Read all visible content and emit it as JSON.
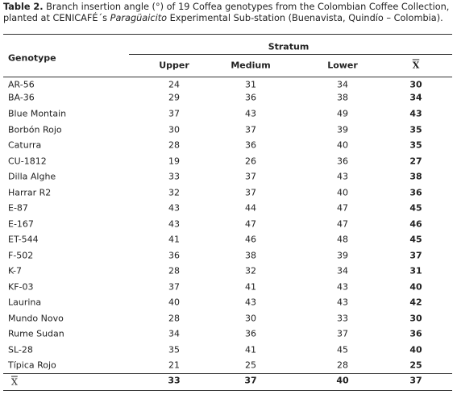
{
  "caption": {
    "label": "Table 2.",
    "text_before": " Branch insertion angle (°) of 19 Coffea genotypes from the Colombian Coffee Collection, planted at CENICAFÉ´s ",
    "italic": "Paragüaicito",
    "text_after": " Experimental Sub-station (Buenavista, Quindío – Colombia)."
  },
  "table": {
    "header": {
      "genotype": "Genotype",
      "group": "Stratum",
      "columns": [
        "Upper",
        "Medium",
        "Lower",
        "X"
      ]
    },
    "rows": [
      [
        "AR-56",
        24,
        31,
        34,
        30
      ],
      [
        "BA-36",
        29,
        36,
        38,
        34
      ],
      [
        "Blue Montain",
        37,
        43,
        49,
        43
      ],
      [
        "Borbón Rojo",
        30,
        37,
        39,
        35
      ],
      [
        "Caturra",
        28,
        36,
        40,
        35
      ],
      [
        "CU-1812",
        19,
        26,
        36,
        27
      ],
      [
        "Dilla Alghe",
        33,
        37,
        43,
        38
      ],
      [
        "Harrar R2",
        32,
        37,
        40,
        36
      ],
      [
        "E-87",
        43,
        44,
        47,
        45
      ],
      [
        "E-167",
        43,
        47,
        47,
        46
      ],
      [
        "ET-544",
        41,
        46,
        48,
        45
      ],
      [
        "F-502",
        36,
        38,
        39,
        37
      ],
      [
        "K-7",
        28,
        32,
        34,
        31
      ],
      [
        "KF-03",
        37,
        41,
        43,
        40
      ],
      [
        "Laurina",
        40,
        43,
        43,
        42
      ],
      [
        "Mundo Novo",
        28,
        30,
        33,
        30
      ],
      [
        "Rume Sudan",
        34,
        36,
        37,
        36
      ],
      [
        "SL-28",
        35,
        41,
        45,
        40
      ],
      [
        "Típica Rojo",
        21,
        25,
        28,
        25
      ]
    ],
    "footer": [
      "X",
      33,
      37,
      40,
      37
    ]
  }
}
